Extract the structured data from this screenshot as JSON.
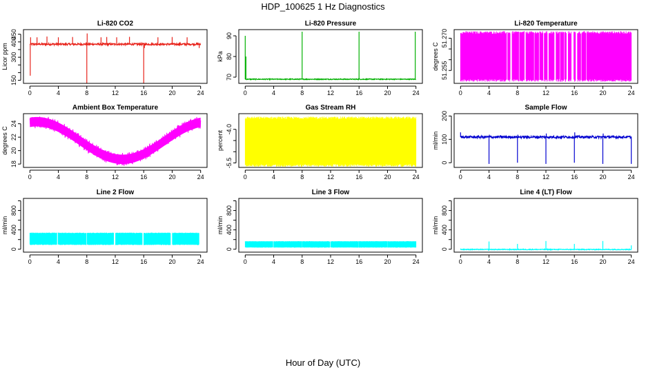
{
  "title": "HDP_100625  1 Hz Diagnostics",
  "xlabel": "Hour of Day (UTC)",
  "chart_data": [
    {
      "type": "line",
      "title": "Li-820 CO2",
      "ylabel": "Licor ppm",
      "color": "#e8231b",
      "xlim": [
        0,
        24
      ],
      "ylim": [
        130,
        480
      ],
      "xticks": [
        0,
        4,
        8,
        12,
        16,
        20,
        24
      ],
      "yticks": [
        150,
        200,
        250,
        300,
        350,
        400,
        450
      ],
      "ytick_labels": [
        "150",
        "",
        "",
        "300",
        "",
        "400",
        "450"
      ],
      "series": [
        {
          "name": "CO2",
          "baseline": 385,
          "noise": 6,
          "spikes": [
            [
              0.05,
              180
            ],
            [
              0.1,
              430
            ],
            [
              1.0,
              430
            ],
            [
              2.4,
              435
            ],
            [
              4.0,
              430
            ],
            [
              6.0,
              432
            ],
            [
              8.0,
              130
            ],
            [
              8.05,
              455
            ],
            [
              10.0,
              430
            ],
            [
              10.8,
              432
            ],
            [
              12.2,
              430
            ],
            [
              14.0,
              433
            ],
            [
              16.0,
              130
            ],
            [
              16.1,
              360
            ],
            [
              18.0,
              430
            ],
            [
              20.0,
              432
            ],
            [
              22.1,
              430
            ],
            [
              23.8,
              360
            ]
          ]
        }
      ]
    },
    {
      "type": "line",
      "title": "Li-820 Pressure",
      "ylabel": "kPa",
      "color": "#00b000",
      "xlim": [
        0,
        24
      ],
      "ylim": [
        67,
        93
      ],
      "xticks": [
        0,
        4,
        8,
        12,
        16,
        20,
        24
      ],
      "yticks": [
        70,
        80,
        90
      ],
      "ytick_labels": [
        "70",
        "80",
        "90"
      ],
      "series": [
        {
          "name": "Pressure",
          "baseline": 69.0,
          "noise": 0.2,
          "spikes": [
            [
              0.0,
              90
            ],
            [
              0.1,
              80
            ],
            [
              8.0,
              92
            ],
            [
              16.0,
              92
            ],
            [
              23.9,
              92
            ]
          ]
        }
      ]
    },
    {
      "type": "line",
      "title": "Li-820 Temperature",
      "ylabel": "degrees C",
      "color": "#ff00ff",
      "xlim": [
        0,
        24
      ],
      "ylim": [
        51.249,
        51.274
      ],
      "xticks": [
        0,
        4,
        8,
        12,
        16,
        20,
        24
      ],
      "yticks": [
        51.255,
        51.26,
        51.265,
        51.27
      ],
      "ytick_labels": [
        "51.255",
        "",
        "",
        "51.270"
      ],
      "series": [
        {
          "name": "Temperature",
          "low": 51.251,
          "high": 51.272,
          "gaps": [
            [
              6.5,
              6.6
            ],
            [
              7.0,
              7.2
            ],
            [
              8.2,
              8.3
            ],
            [
              9.0,
              9.15
            ],
            [
              10.3,
              10.4
            ],
            [
              11.0,
              11.1
            ],
            [
              11.6,
              11.75
            ],
            [
              12.2,
              12.4
            ],
            [
              13.2,
              13.4
            ],
            [
              13.9,
              14.0
            ],
            [
              14.5,
              14.6
            ],
            [
              14.9,
              15.1
            ],
            [
              15.6,
              15.9
            ],
            [
              16.2,
              16.4
            ],
            [
              16.9,
              17.0
            ],
            [
              17.6,
              17.7
            ]
          ]
        }
      ]
    },
    {
      "type": "line",
      "title": "Ambient Box Temperature",
      "ylabel": "degrees C",
      "color": "#ff00ff",
      "xlim": [
        0,
        24
      ],
      "ylim": [
        17.5,
        25.5
      ],
      "xticks": [
        0,
        4,
        8,
        12,
        16,
        20,
        24
      ],
      "yticks": [
        18,
        20,
        22,
        24
      ],
      "ytick_labels": [
        "18",
        "20",
        "22",
        "24"
      ],
      "series": [
        {
          "name": "Ambient",
          "mean": 21.5,
          "amplitude": 2.8,
          "min_hour": 13.0,
          "band": 1.4
        }
      ]
    },
    {
      "type": "line",
      "title": "Gas Stream RH",
      "ylabel": "percent",
      "color": "#ffff00",
      "xlim": [
        0,
        24
      ],
      "ylim": [
        -5.7,
        -3.3
      ],
      "xticks": [
        0,
        4,
        8,
        12,
        16,
        20,
        24
      ],
      "yticks": [
        -5.5,
        -5.0,
        -4.5,
        -4.0
      ],
      "ytick_labels": [
        "-5.5",
        "",
        "",
        "-4.0"
      ],
      "series": [
        {
          "name": "RH",
          "low": -5.55,
          "high": -3.55
        }
      ]
    },
    {
      "type": "line",
      "title": "Sample Flow",
      "ylabel": "ml/min",
      "color": "#0000d0",
      "xlim": [
        0,
        24
      ],
      "ylim": [
        -20,
        210
      ],
      "xticks": [
        0,
        4,
        8,
        12,
        16,
        20,
        24
      ],
      "yticks": [
        0,
        100,
        200
      ],
      "ytick_labels": [
        "0",
        "100",
        "200"
      ],
      "series": [
        {
          "name": "Flow",
          "baseline": 110,
          "noise": 5,
          "spikes": [
            [
              0.0,
              130
            ],
            [
              4.0,
              -5
            ],
            [
              4.05,
              120
            ],
            [
              8.0,
              0
            ],
            [
              8.05,
              120
            ],
            [
              12.0,
              -5
            ],
            [
              12.05,
              125
            ],
            [
              16.0,
              0
            ],
            [
              16.05,
              130
            ],
            [
              20.0,
              -5
            ],
            [
              20.05,
              125
            ],
            [
              24.0,
              -5
            ]
          ]
        }
      ]
    },
    {
      "type": "line",
      "title": "Line 2 Flow",
      "ylabel": "ml/min",
      "color": "#00ffff",
      "xlim": [
        0,
        24
      ],
      "ylim": [
        -60,
        1050
      ],
      "xticks": [
        0,
        4,
        8,
        12,
        16,
        20,
        24
      ],
      "yticks": [
        0,
        200,
        400,
        600,
        800,
        1000
      ],
      "ytick_labels": [
        "0",
        "",
        "400",
        "",
        "800",
        ""
      ],
      "series": [
        {
          "name": "Line2",
          "low": 100,
          "high": 330,
          "gaps": [
            [
              3.8,
              3.95
            ],
            [
              7.9,
              8.0
            ],
            [
              11.8,
              12.0
            ],
            [
              15.8,
              16.0
            ],
            [
              19.8,
              20.0
            ],
            [
              23.8,
              24.0
            ]
          ]
        }
      ]
    },
    {
      "type": "line",
      "title": "Line 3 Flow",
      "ylabel": "ml/min",
      "color": "#00ffff",
      "xlim": [
        0,
        24
      ],
      "ylim": [
        -60,
        1050
      ],
      "xticks": [
        0,
        4,
        8,
        12,
        16,
        20,
        24
      ],
      "yticks": [
        0,
        200,
        400,
        600,
        800,
        1000
      ],
      "ytick_labels": [
        "0",
        "",
        "400",
        "",
        "800",
        ""
      ],
      "series": [
        {
          "name": "Line3",
          "low": 40,
          "high": 160,
          "gaps": [
            [
              3.9,
              4.0
            ],
            [
              7.95,
              8.0
            ],
            [
              11.95,
              12.0
            ],
            [
              15.95,
              16.0
            ],
            [
              19.95,
              20.0
            ]
          ]
        }
      ]
    },
    {
      "type": "line",
      "title": "Line 4 (LT) Flow",
      "ylabel": "ml/min",
      "color": "#00ffff",
      "xlim": [
        0,
        24
      ],
      "ylim": [
        -60,
        1050
      ],
      "xticks": [
        0,
        4,
        8,
        12,
        16,
        20,
        24
      ],
      "yticks": [
        0,
        200,
        400,
        600,
        800,
        1000
      ],
      "ytick_labels": [
        "0",
        "",
        "400",
        "",
        "800",
        ""
      ],
      "series": [
        {
          "name": "Line4",
          "baseline": -5,
          "noise": 8,
          "spikes": [
            [
              4.0,
              160
            ],
            [
              8.0,
              110
            ],
            [
              12.0,
              170
            ],
            [
              16.0,
              110
            ],
            [
              20.0,
              170
            ],
            [
              24.0,
              80
            ]
          ]
        }
      ]
    }
  ]
}
